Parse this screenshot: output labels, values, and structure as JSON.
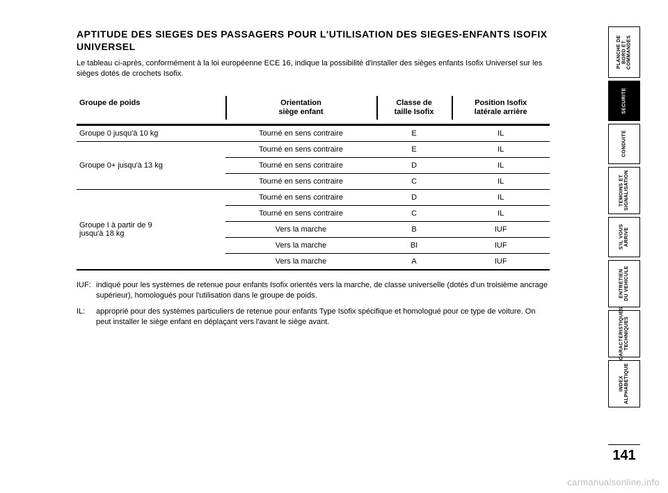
{
  "title": "APTITUDE DES SIEGES DES PASSAGERS POUR L'UTILISATION DES SIEGES-ENFANTS ISOFIX UNIVERSEL",
  "intro": "Le tableau ci-après, conformément à la loi européenne ECE 16, indique la possibilité d'installer des sièges enfants Isofix Universel sur les sièges dotés de crochets Isofix.",
  "table": {
    "headers": {
      "group": "Groupe de poids",
      "orientation": "Orientation\nsiège enfant",
      "class": "Classe de\ntaille Isofix",
      "position": "Position Isofix\nlatérale arrière"
    },
    "groups": [
      {
        "label": "Groupe 0 jusqu'à 10 kg",
        "rows": [
          {
            "orientation": "Tourné en sens contraire",
            "class": "E",
            "position": "IL"
          }
        ]
      },
      {
        "label": "Groupe 0+ jusqu'à 13 kg",
        "rows": [
          {
            "orientation": "Tourné en sens contraire",
            "class": "E",
            "position": "IL"
          },
          {
            "orientation": "Tourné en sens contraire",
            "class": "D",
            "position": "IL"
          },
          {
            "orientation": "Tourné en sens contraire",
            "class": "C",
            "position": "IL"
          }
        ]
      },
      {
        "label": "Groupe I à partir de 9\njusqu'à 18 kg",
        "rows": [
          {
            "orientation": "Tourné en sens contraire",
            "class": "D",
            "position": "IL"
          },
          {
            "orientation": "Tourné en sens contraire",
            "class": "C",
            "position": "IL"
          },
          {
            "orientation": "Vers la marche",
            "class": "B",
            "position": "IUF"
          },
          {
            "orientation": "Vers la marche",
            "class": "BI",
            "position": "IUF"
          },
          {
            "orientation": "Vers la marche",
            "class": "A",
            "position": "IUF"
          }
        ]
      }
    ]
  },
  "footnotes": [
    {
      "key": "IUF:",
      "text": "indiqué pour les systèmes de retenue pour enfants Isofix orientés vers la marche, de classe universelle (dotés d'un troisième ancrage supérieur), homologués pour l'utilisation dans le groupe de poids."
    },
    {
      "key": "IL:",
      "text": "approprié pour des systèmes particuliers de retenue pour enfants Type Isofix spécifique et homologué pour ce type de voiture. On peut installer le siège enfant en déplaçant vers l'avant le siège avant."
    }
  ],
  "tabs": [
    {
      "label": "PLANCHE DE\nBORD ET\nCOMMANDES",
      "active": false,
      "height": "h1"
    },
    {
      "label": "SECURITE",
      "active": true,
      "height": "h2"
    },
    {
      "label": "CONDUITE",
      "active": false,
      "height": "h2"
    },
    {
      "label": "TEMOINS ET\nSIGNALISATION",
      "active": false,
      "height": "h3"
    },
    {
      "label": "S'IL VOUS\nARRIVE",
      "active": false,
      "height": "h2"
    },
    {
      "label": "ENTRETIEN\nDU VEHICULE",
      "active": false,
      "height": "h3"
    },
    {
      "label": "CARACTERISTIQUES\nTECHNIQUES",
      "active": false,
      "height": "h3"
    },
    {
      "label": "INDEX\nALPHABETIQUE",
      "active": false,
      "height": "h3"
    }
  ],
  "page_number": "141",
  "watermark": "carmanualsonline.info",
  "colors": {
    "text": "#000000",
    "background": "#ffffff",
    "rule": "#000000",
    "watermark": "#bdbdbd"
  }
}
